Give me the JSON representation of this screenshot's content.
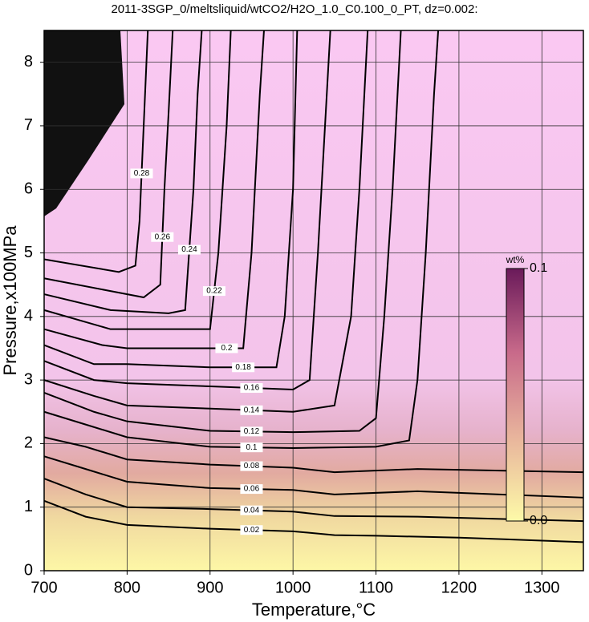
{
  "chart_data": {
    "type": "contour",
    "title": "2011-3SGP_0/meltsliquid/wtCO2/H2O_1.0_C0.100_0_PT, dz=0.002:",
    "x_label": "Temperature,°C",
    "y_label": "Pressure,x100MPa",
    "xlim": [
      700,
      1350
    ],
    "ylim": [
      0,
      8.5
    ],
    "xticks": [
      700,
      800,
      900,
      1000,
      1100,
      1200,
      1300
    ],
    "yticks": [
      0,
      1,
      2,
      3,
      4,
      5,
      6,
      7,
      8
    ],
    "grid": true,
    "colorbar": {
      "label": "wt%",
      "lim": [
        0,
        0.1
      ],
      "ticks": [
        {
          "value": 0,
          "label": "0.0"
        },
        0.1
      ],
      "colors": [
        "#fdfaa8",
        "#e8b49c",
        "#c86a8a",
        "#6a1a5a"
      ]
    },
    "contours": [
      {
        "level": 0.02,
        "x": [
          700,
          750,
          800,
          900,
          1000,
          1050,
          1100,
          1200,
          1350
        ],
        "y": [
          1.1,
          0.85,
          0.72,
          0.66,
          0.62,
          0.56,
          0.55,
          0.52,
          0.45
        ]
      },
      {
        "level": 0.04,
        "x": [
          700,
          750,
          800,
          900,
          1000,
          1050,
          1150,
          1350
        ],
        "y": [
          1.45,
          1.2,
          1.0,
          0.97,
          0.93,
          0.86,
          0.85,
          0.78
        ]
      },
      {
        "level": 0.06,
        "x": [
          700,
          750,
          800,
          900,
          1000,
          1050,
          1150,
          1350
        ],
        "y": [
          1.8,
          1.6,
          1.4,
          1.3,
          1.27,
          1.2,
          1.25,
          1.15
        ]
      },
      {
        "level": 0.08,
        "x": [
          700,
          750,
          800,
          900,
          1000,
          1050,
          1150,
          1350
        ],
        "y": [
          2.1,
          1.95,
          1.75,
          1.67,
          1.62,
          1.55,
          1.6,
          1.55
        ]
      },
      {
        "level": 0.1,
        "x": [
          700,
          750,
          800,
          900,
          1000,
          1100,
          1140,
          1150,
          1160,
          1170,
          1175
        ],
        "y": [
          2.5,
          2.3,
          2.1,
          1.95,
          1.93,
          1.95,
          2.05,
          3,
          5,
          7.5,
          8.5
        ]
      },
      {
        "level": 0.12,
        "x": [
          700,
          760,
          800,
          900,
          1000,
          1080,
          1100,
          1110,
          1120,
          1130
        ],
        "y": [
          2.8,
          2.5,
          2.35,
          2.2,
          2.18,
          2.2,
          2.4,
          4,
          6,
          8.5
        ]
      },
      {
        "level": 0.14,
        "x": [
          700,
          760,
          800,
          900,
          1000,
          1050,
          1070,
          1080,
          1090
        ],
        "y": [
          3.0,
          2.75,
          2.6,
          2.55,
          2.5,
          2.6,
          4,
          6,
          8.5
        ]
      },
      {
        "level": 0.16,
        "x": [
          700,
          760,
          800,
          900,
          1000,
          1020,
          1030,
          1045
        ],
        "y": [
          3.3,
          3.0,
          2.95,
          2.9,
          2.85,
          3,
          5,
          8.5
        ]
      },
      {
        "level": 0.18,
        "x": [
          700,
          760,
          800,
          900,
          980,
          990,
          1000,
          1005
        ],
        "y": [
          3.55,
          3.25,
          3.25,
          3.2,
          3.2,
          4,
          6,
          8.5
        ]
      },
      {
        "level": 0.2,
        "x": [
          700,
          770,
          800,
          900,
          940,
          950,
          960,
          965
        ],
        "y": [
          3.8,
          3.55,
          3.5,
          3.5,
          3.5,
          5,
          7.5,
          8.5
        ]
      },
      {
        "level": 0.22,
        "x": [
          700,
          780,
          860,
          900,
          910,
          920,
          925
        ],
        "y": [
          4.1,
          3.8,
          3.8,
          3.8,
          5,
          7,
          8.5
        ]
      },
      {
        "level": 0.24,
        "x": [
          700,
          780,
          850,
          870,
          880,
          885,
          890
        ],
        "y": [
          4.35,
          4.1,
          4.05,
          4.1,
          6,
          7.5,
          8.5
        ]
      },
      {
        "level": 0.26,
        "x": [
          700,
          780,
          820,
          840,
          845,
          850,
          855
        ],
        "y": [
          4.6,
          4.4,
          4.3,
          4.5,
          6,
          7.2,
          8.5
        ]
      },
      {
        "level": 0.28,
        "x": [
          700,
          790,
          810,
          815,
          820,
          825
        ],
        "y": [
          4.9,
          4.7,
          4.8,
          5.5,
          7,
          8.5
        ]
      }
    ]
  }
}
